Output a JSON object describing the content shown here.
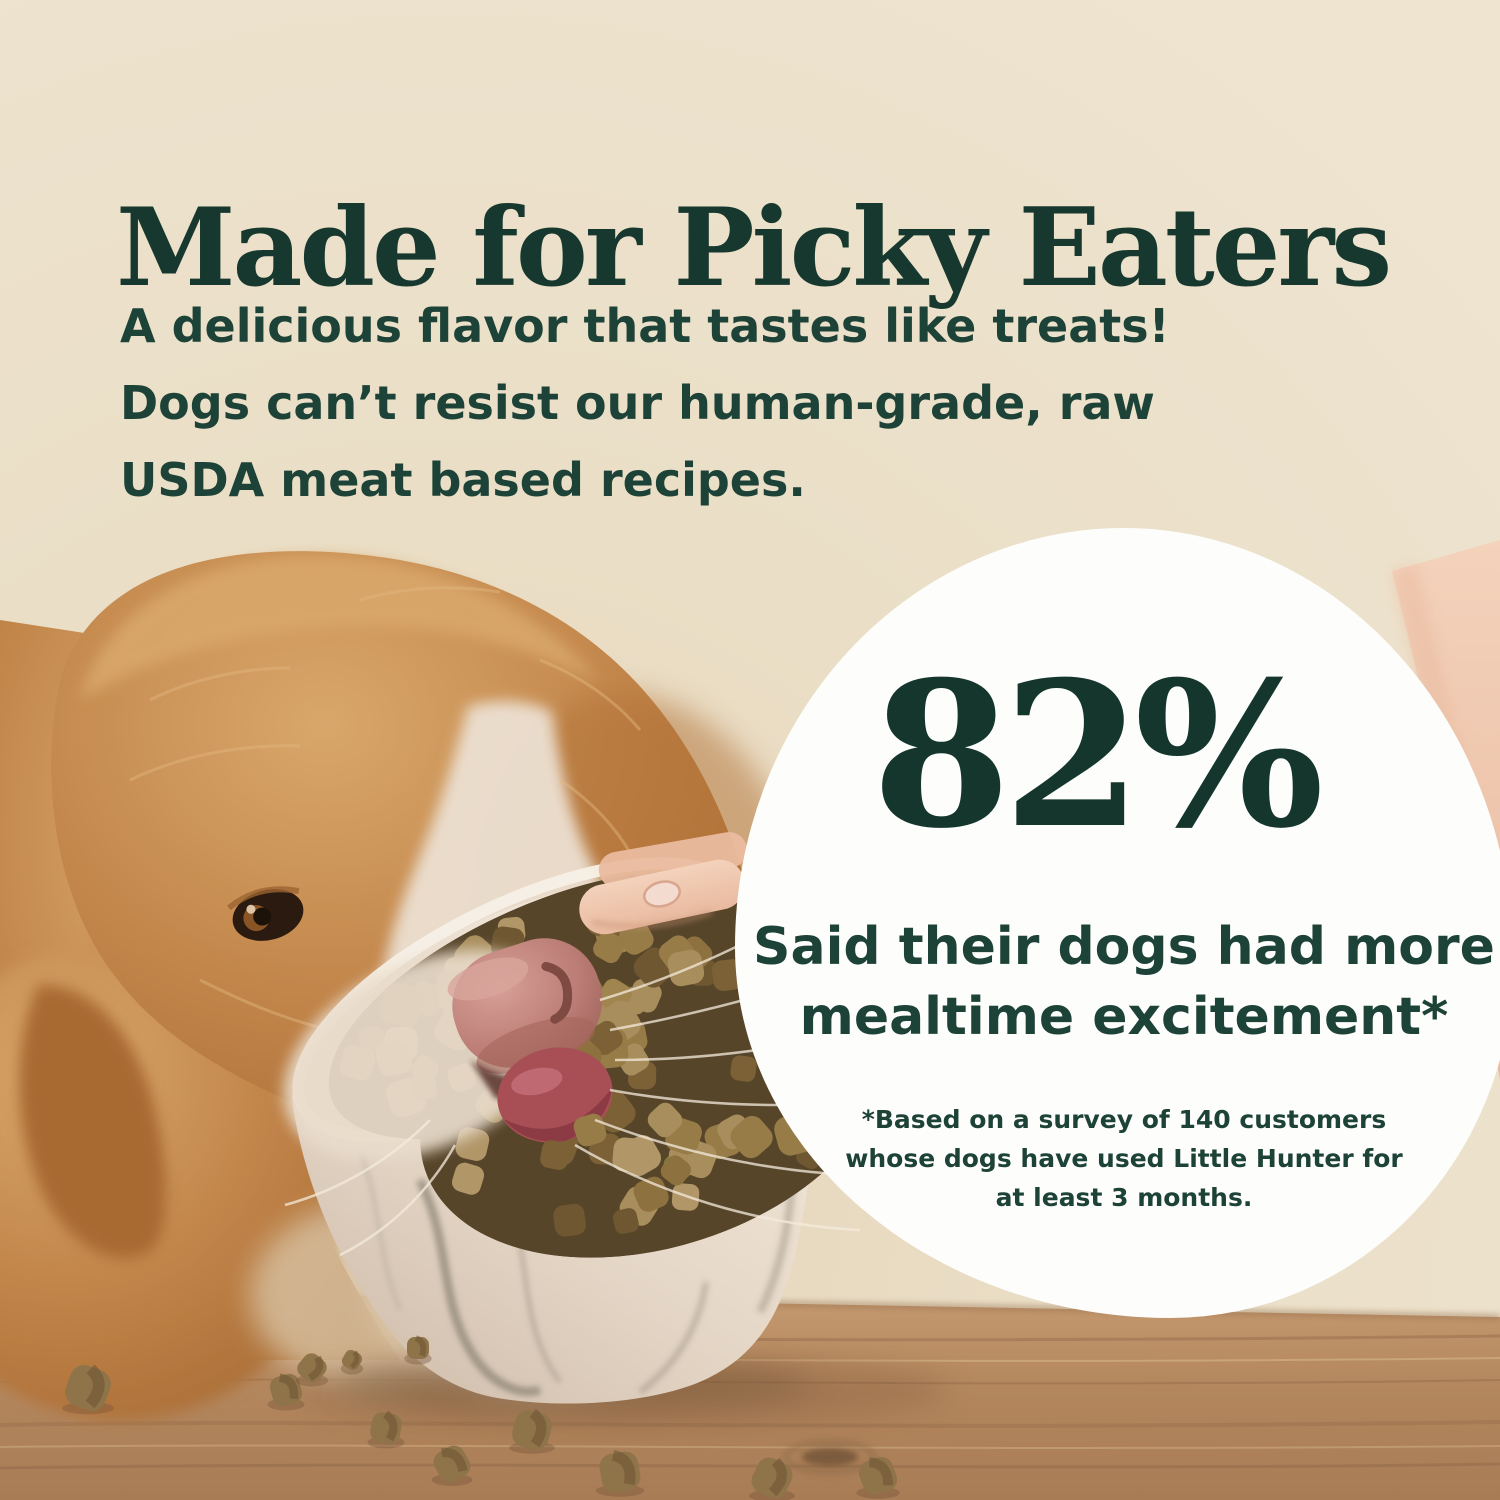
{
  "headline": "Made for Picky Eaters",
  "subheadline": {
    "lines": [
      "A delicious flavor that tastes like treats!",
      "Dogs can’t resist our human-grade, raw",
      "USDA meat based recipes."
    ]
  },
  "stat_badge": {
    "value": "82%",
    "caption_lines": [
      "Said their dogs had more",
      "mealtime excitement*"
    ],
    "footnote_lines": [
      "*Based on a survey of 140 customers",
      "whose dogs have used Little Hunter for",
      "at least 3 months."
    ]
  },
  "photo": {
    "description": "Golden-brown dog eating kibble from a white marble ceramic bowl held by a person's hand on a wooden table"
  },
  "colors": {
    "background_beige": "#ece1cb",
    "heading_green": "#17382e",
    "body_green": "#1d4237",
    "badge_white": "#fdfdfb",
    "wood_brown": "#b4875e",
    "fur_orange": "#c08348",
    "kibble_olive": "#93794a",
    "skin": "#eec0a7"
  }
}
